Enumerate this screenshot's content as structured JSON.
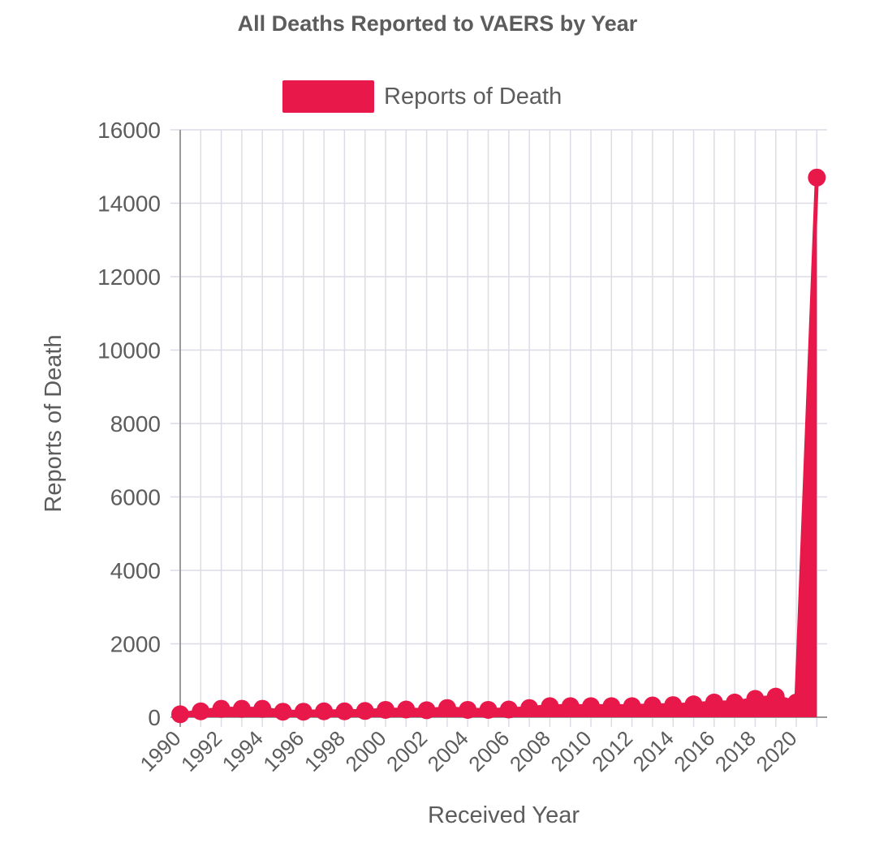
{
  "chart_data": {
    "type": "line",
    "title": "All Deaths Reported to VAERS by Year",
    "xlabel": "Received Year",
    "ylabel": "Reports of Death",
    "legend": {
      "position": "top",
      "entries": [
        "Reports of Death"
      ]
    },
    "grid": true,
    "fill_area": true,
    "ylim": [
      0,
      16000
    ],
    "yticks": [
      "0",
      "2000",
      "4000",
      "6000",
      "8000",
      "10000",
      "12000",
      "14000",
      "16000"
    ],
    "xticks": [
      "1990",
      "1992",
      "1994",
      "1996",
      "1998",
      "2000",
      "2002",
      "2004",
      "2006",
      "2008",
      "2010",
      "2012",
      "2014",
      "2016",
      "2018",
      "2020"
    ],
    "series": [
      {
        "name": "Reports of Death",
        "color": "#e8194a",
        "x": [
          1990,
          1991,
          1992,
          1993,
          1994,
          1995,
          1996,
          1997,
          1998,
          1999,
          2000,
          2001,
          2002,
          2003,
          2004,
          2005,
          2006,
          2007,
          2008,
          2009,
          2010,
          2011,
          2012,
          2013,
          2014,
          2015,
          2016,
          2017,
          2018,
          2019,
          2020,
          2021
        ],
        "values": [
          80,
          160,
          230,
          230,
          230,
          150,
          150,
          160,
          160,
          170,
          200,
          210,
          190,
          250,
          200,
          200,
          210,
          250,
          300,
          300,
          300,
          300,
          300,
          320,
          330,
          350,
          400,
          400,
          500,
          560,
          400,
          14700
        ]
      }
    ]
  }
}
